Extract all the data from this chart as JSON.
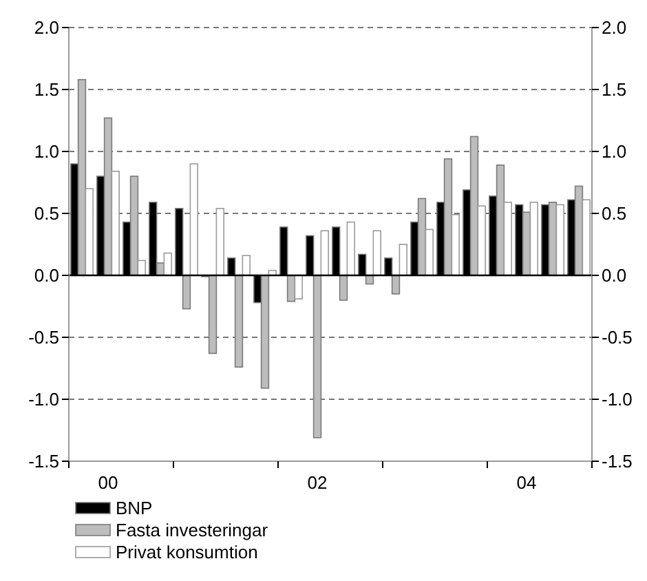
{
  "chart_data": {
    "type": "bar",
    "categories": [
      null,
      "00",
      null,
      null,
      null,
      null,
      null,
      null,
      null,
      "02",
      null,
      null,
      null,
      null,
      null,
      null,
      null,
      "04",
      null,
      null
    ],
    "series": [
      {
        "name": "BNP",
        "color": "#000000",
        "values": [
          0.9,
          0.8,
          0.43,
          0.59,
          0.54,
          -0.01,
          0.14,
          -0.22,
          0.39,
          0.32,
          0.39,
          0.17,
          0.14,
          0.43,
          0.59,
          0.69,
          0.64,
          0.57,
          0.57,
          0.61
        ]
      },
      {
        "name": "Fasta investeringar",
        "color": "#bdbdbd",
        "values": [
          1.58,
          1.27,
          0.8,
          0.1,
          -0.27,
          -0.63,
          -0.74,
          -0.91,
          -0.21,
          -1.31,
          -0.2,
          -0.07,
          -0.15,
          0.62,
          0.94,
          1.12,
          0.89,
          0.51,
          0.59,
          0.72
        ]
      },
      {
        "name": "Privat konsumtion",
        "color": "#ffffff",
        "values": [
          0.7,
          0.84,
          0.12,
          0.18,
          0.9,
          0.54,
          0.16,
          0.04,
          -0.19,
          0.36,
          0.43,
          0.36,
          0.25,
          0.37,
          0.49,
          0.56,
          0.59,
          0.59,
          0.57,
          0.61
        ]
      }
    ],
    "ylim": [
      -1.5,
      2.0
    ],
    "yticks": [
      {
        "value": -1.5,
        "label": "-1.5"
      },
      {
        "value": -1.0,
        "label": "-1.0"
      },
      {
        "value": -0.5,
        "label": "-0.5"
      },
      {
        "value": 0,
        "label": "0.0"
      },
      {
        "value": 0.5,
        "label": "0.5"
      },
      {
        "value": 1.0,
        "label": "1.0"
      },
      {
        "value": 1.5,
        "label": "1.5"
      },
      {
        "value": 2.0,
        "label": "2.0"
      }
    ],
    "y2lim": [
      -1.5,
      2.0
    ],
    "y2ticks": [
      {
        "value": -1.5,
        "label": "-1.5"
      },
      {
        "value": -1.0,
        "label": "-1.0"
      },
      {
        "value": -0.5,
        "label": "-0.5"
      },
      {
        "value": 0,
        "label": "0.0"
      },
      {
        "value": 0.5,
        "label": "0.5"
      },
      {
        "value": 1.0,
        "label": "1.0"
      },
      {
        "value": 1.5,
        "label": "1.5"
      },
      {
        "value": 2.0,
        "label": "2.0"
      }
    ],
    "grid": "y",
    "legend": "bottom"
  }
}
